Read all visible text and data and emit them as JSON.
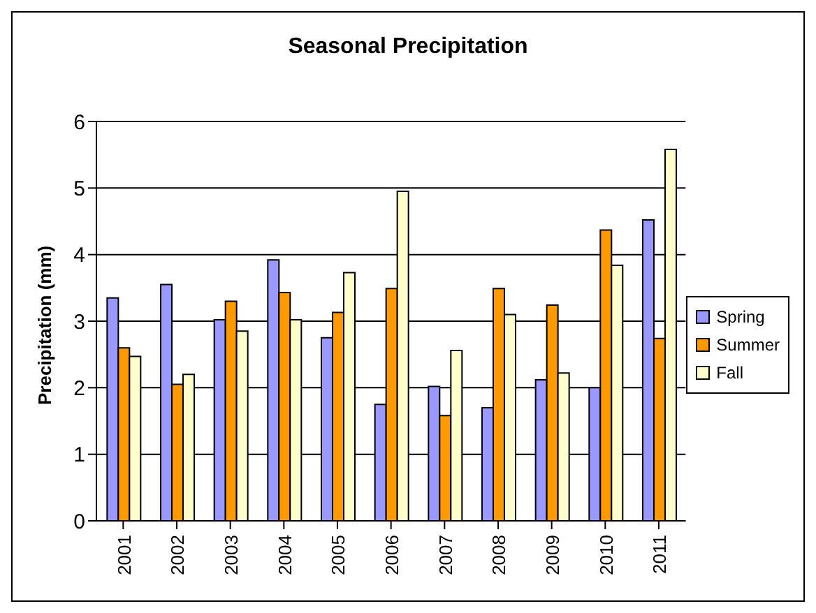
{
  "chart_data": {
    "type": "bar",
    "title": "Seasonal Precipitation",
    "ylabel": "Precipitation (mm)",
    "categories": [
      "2001",
      "2002",
      "2003",
      "2004",
      "2005",
      "2006",
      "2007",
      "2008",
      "2009",
      "2010",
      "2011"
    ],
    "series": [
      {
        "name": "Spring",
        "color": "#9999ff",
        "values": [
          3.35,
          3.55,
          3.02,
          3.92,
          2.75,
          1.75,
          2.02,
          1.7,
          2.12,
          2.0,
          4.52
        ]
      },
      {
        "name": "Summer",
        "color": "#ff9900",
        "values": [
          2.6,
          2.05,
          3.3,
          3.43,
          3.13,
          3.49,
          1.58,
          3.49,
          3.24,
          4.37,
          2.74
        ]
      },
      {
        "name": "Fall",
        "color": "#ffffcc",
        "values": [
          2.47,
          2.2,
          2.85,
          3.02,
          3.73,
          4.95,
          2.56,
          3.1,
          2.22,
          3.84,
          5.58
        ]
      }
    ],
    "ylim": [
      0,
      6
    ],
    "yticks": [
      0,
      1,
      2,
      3,
      4,
      5,
      6
    ],
    "grid": "y",
    "legend": "right"
  }
}
